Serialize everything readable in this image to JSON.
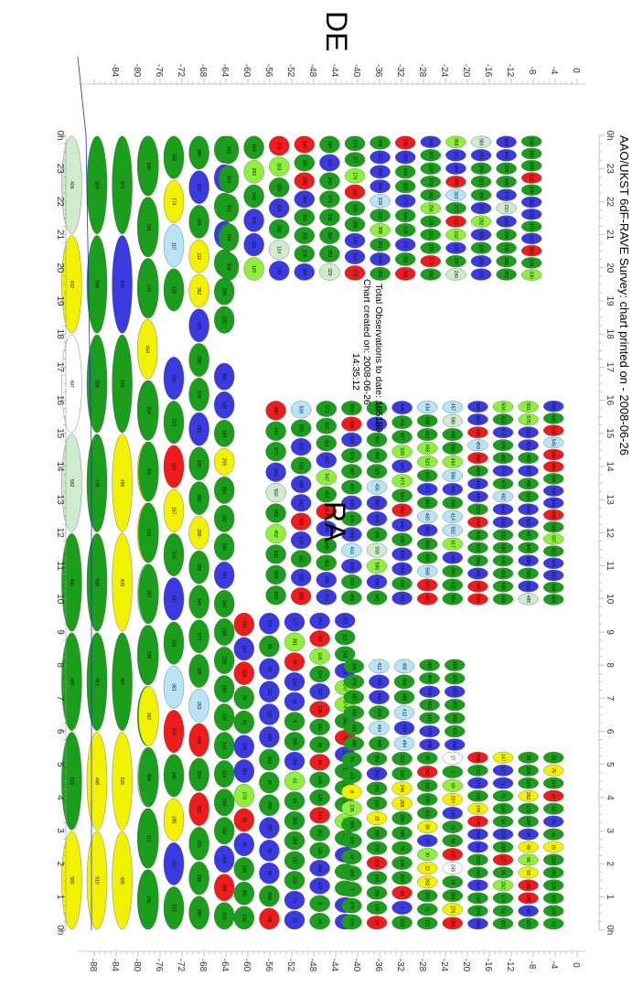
{
  "chart_data": {
    "type": "scatter",
    "title": "AAO/UKST 6dF-RAVE Survey: chart printed on - 2008-06-26",
    "xlabel": "RA",
    "ylabel": "DE",
    "info_line1": "Total Observations to date: 165189",
    "info_line2": "Chart created on: 2008-06-26",
    "info_line3": "14:35:12",
    "ra_ticks": [
      "0h",
      "23",
      "22",
      "21",
      "20",
      "19",
      "18",
      "17",
      "16",
      "15",
      "14",
      "13",
      "12",
      "11",
      "10",
      "9",
      "8",
      "7",
      "6",
      "5",
      "4",
      "3",
      "2",
      "1",
      "0h"
    ],
    "de_ticks_top": [
      "0",
      "-4",
      "-8",
      "-12",
      "-16",
      "-20",
      "-24",
      "-28",
      "-32",
      "-36",
      "-40",
      "-44",
      "-48",
      "-52",
      "-56",
      "-60",
      "-64",
      "-68",
      "-72",
      "-76",
      "-80",
      "-84"
    ],
    "de_ticks_bottom": [
      "0",
      "-4",
      "-8",
      "-12",
      "-16",
      "-20",
      "-24",
      "-28",
      "-32",
      "-36",
      "-40",
      "-44",
      "-48",
      "-52",
      "-56",
      "-60",
      "-64",
      "-68",
      "-72",
      "-76",
      "-80",
      "-84",
      "-88"
    ],
    "ra_range": [
      0,
      24
    ],
    "de_range": [
      0,
      -88
    ],
    "legend": "none",
    "grid": false,
    "status_colors": {
      "green": "#1b9e1b",
      "blue": "#3a3ae0",
      "red": "#ee1c1c",
      "yellow": "#f2f200",
      "lightgreen": "#8ef03c",
      "lightblue": "#b8e4f7",
      "palegreen": "#cfeccf",
      "white": "#ffffff"
    },
    "regions": [
      {
        "name": "south-cap-fields",
        "de_min": -90,
        "de_max": -76,
        "ra_from": 0,
        "ra_to": 24,
        "palette": [
          "green",
          "yellow",
          "white",
          "palegreen",
          "blue",
          "red"
        ],
        "seed": 11,
        "fields_labeled": "400-599"
      },
      {
        "name": "south-band-fields",
        "de_min": -76,
        "de_max": -62,
        "ra_from": 0,
        "ra_to": 24,
        "exclude_ra": [
          17.3,
          18.2
        ],
        "palette": [
          "green",
          "blue",
          "yellow",
          "red",
          "lightblue"
        ],
        "seed": 23,
        "fields_labeled": "100-399"
      },
      {
        "name": "west-wedge-fields",
        "de_min": -62,
        "de_max": -6,
        "ra_from": 19.6,
        "ra_to": 24,
        "palette": [
          "green",
          "blue",
          "red",
          "lightgreen",
          "palegreen",
          "lightblue"
        ],
        "seed": 37,
        "fields_labeled": "100-399"
      },
      {
        "name": "east-wedge-fields",
        "de_min": -62,
        "de_max": -40,
        "ra_from": 0,
        "ra_to": 9.6,
        "palette": [
          "green",
          "blue",
          "red",
          "lightgreen",
          "yellow"
        ],
        "seed": 41,
        "fields_labeled": "1-399"
      },
      {
        "name": "east-upper-fields",
        "de_min": -40,
        "de_max": -2,
        "ra_from": 0,
        "ra_to": 5.4,
        "palette": [
          "green",
          "blue",
          "yellow",
          "red",
          "lightgreen",
          "white"
        ],
        "seed": 53,
        "fields_labeled": "1-299"
      },
      {
        "name": "mid-strip-fields",
        "de_min": -40,
        "de_max": -20,
        "ra_from": 5.4,
        "ra_to": 8.2,
        "palette": [
          "green",
          "blue",
          "lightblue",
          "lightgreen"
        ],
        "seed": 61,
        "fields_labeled": "400-499"
      },
      {
        "name": "galactic-gap-fields",
        "de_min": -56,
        "de_max": -2,
        "ra_from": 9.8,
        "ra_to": 16.0,
        "palette": [
          "green",
          "blue",
          "red",
          "lightgreen",
          "lightblue",
          "palegreen"
        ],
        "seed": 73,
        "fields_labeled": "400-599"
      }
    ]
  },
  "colors": {
    "ruler": "#999999",
    "axis_line": "#2a2ac8",
    "label_text": "#111111"
  }
}
